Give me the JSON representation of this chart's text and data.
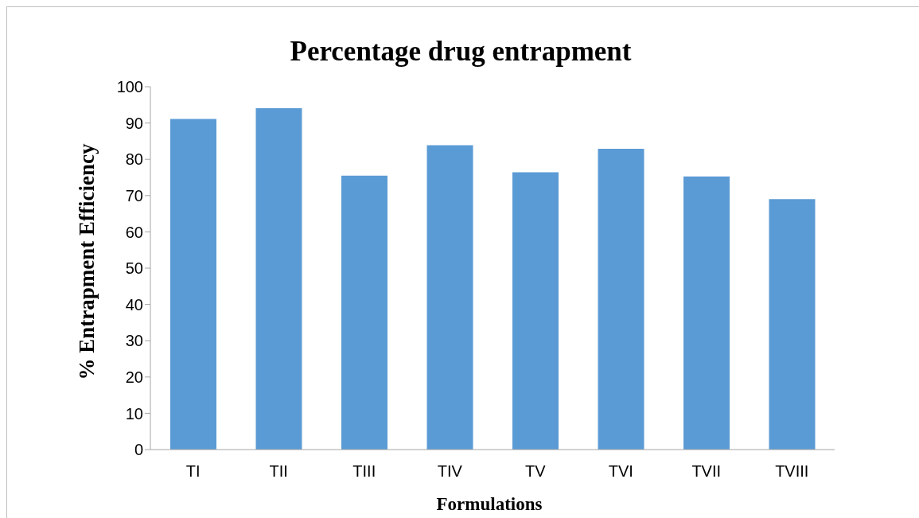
{
  "chart_data": {
    "type": "bar",
    "title": "Percentage drug entrapment",
    "xlabel": "Formulations",
    "ylabel": "% Entrapment Efficiency",
    "categories": [
      "TI",
      "TII",
      "TIII",
      "TIV",
      "TV",
      "TVI",
      "TVII",
      "TVIII"
    ],
    "values": [
      91.1,
      94.1,
      75.5,
      83.9,
      76.4,
      82.9,
      75.3,
      69.0
    ],
    "color": "#5b9bd5",
    "ylim": [
      0,
      100
    ],
    "yticks": [
      0,
      10,
      20,
      30,
      40,
      50,
      60,
      70,
      80,
      90,
      100
    ],
    "grid": false,
    "legend": false
  }
}
